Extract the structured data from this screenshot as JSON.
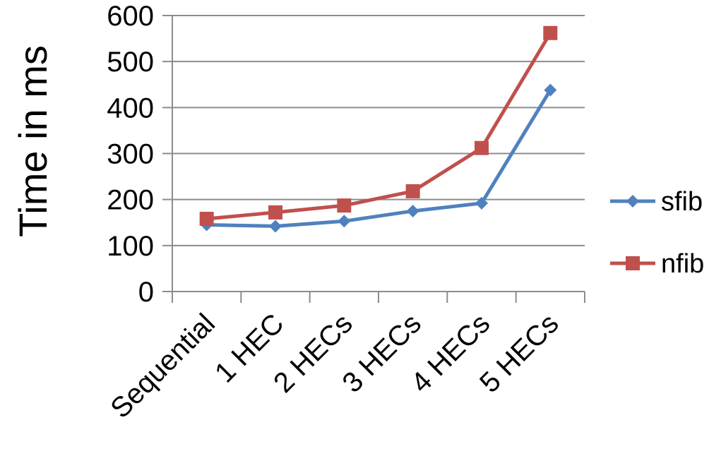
{
  "chart_data": {
    "type": "line",
    "title": "",
    "xlabel": "",
    "ylabel": "Time in ms",
    "ylim": [
      0,
      600
    ],
    "yticks": [
      0,
      100,
      200,
      300,
      400,
      500,
      600
    ],
    "categories": [
      "Sequential",
      "1 HEC",
      "2 HECs",
      "3 HECs",
      "4 HECs",
      "5 HECs"
    ],
    "grid": true,
    "legend_position": "right",
    "series": [
      {
        "name": "sfib",
        "values": [
          145,
          142,
          153,
          175,
          192,
          438
        ],
        "color": "#4F81BD",
        "marker": "diamond"
      },
      {
        "name": "nfib",
        "values": [
          158,
          172,
          187,
          218,
          312,
          562
        ],
        "color": "#C0504D",
        "marker": "square"
      }
    ]
  }
}
